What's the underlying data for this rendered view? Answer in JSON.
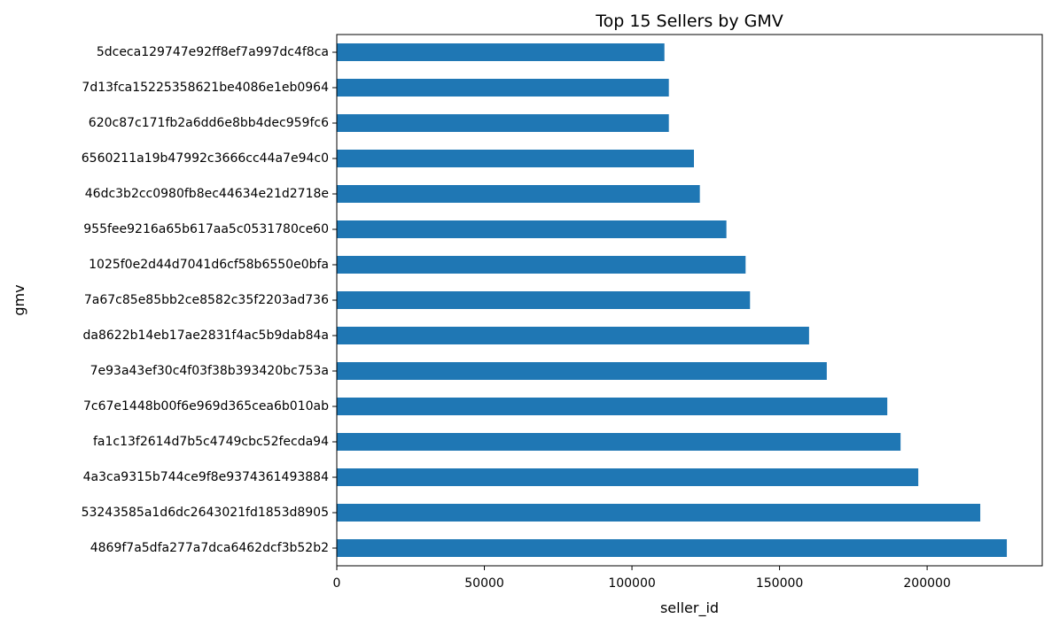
{
  "chart_data": {
    "type": "bar",
    "orientation": "horizontal",
    "title": "Top 15 Sellers by GMV",
    "xlabel": "seller_id",
    "ylabel": "gmv",
    "xlim": [
      0,
      239000
    ],
    "xticks": [
      0,
      50000,
      100000,
      150000,
      200000
    ],
    "xtick_labels": [
      "0",
      "50000",
      "100000",
      "150000",
      "200000"
    ],
    "grid": false,
    "bar_color": "#1f77b4",
    "categories": [
      "4869f7a5dfa277a7dca6462dcf3b52b2",
      "53243585a1d6dc2643021fd1853d8905",
      "4a3ca9315b744ce9f8e9374361493884",
      "fa1c13f2614d7b5c4749cbc52fecda94",
      "7c67e1448b00f6e969d365cea6b010ab",
      "7e93a43ef30c4f03f38b393420bc753a",
      "da8622b14eb17ae2831f4ac5b9dab84a",
      "7a67c85e85bb2ce8582c35f2203ad736",
      "1025f0e2d44d7041d6cf58b6550e0bfa",
      "955fee9216a65b617aa5c0531780ce60",
      "46dc3b2cc0980fb8ec44634e21d2718e",
      "6560211a19b47992c3666cc44a7e94c0",
      "620c87c171fb2a6dd6e8bb4dec959fc6",
      "7d13fca15225358621be4086e1eb0964",
      "5dceca129747e92ff8ef7a997dc4f8ca"
    ],
    "values": [
      227000,
      218000,
      197000,
      191000,
      186500,
      166000,
      160000,
      140000,
      138500,
      132000,
      123000,
      121000,
      112500,
      112500,
      111000
    ]
  }
}
